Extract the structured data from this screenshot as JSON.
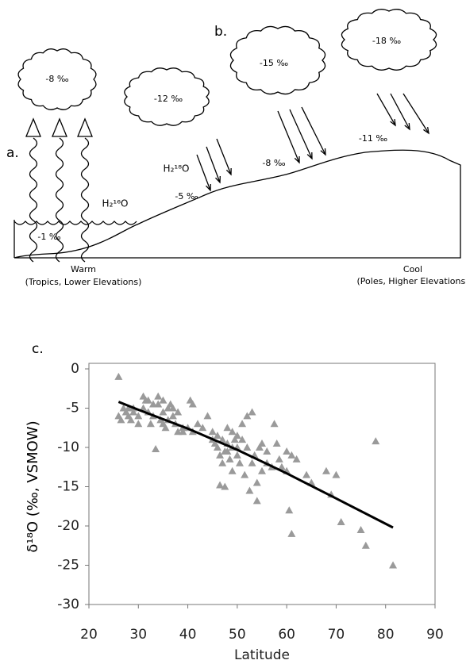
{
  "diagram": {
    "panel_a": "a.",
    "panel_b": "b.",
    "clouds": [
      "-8 ‰",
      "-12 ‰",
      "-15 ‰",
      "-18 ‰"
    ],
    "surface": [
      "-1 ‰",
      "-5 ‰",
      "-8 ‰",
      "-11 ‰"
    ],
    "h2_16o": "H₂¹⁶O",
    "h2_18o": "H₂¹⁸O",
    "warm": "Warm",
    "warm_note": "(Tropics, Lower Elevations)",
    "cool": "Cool",
    "cool_note": "(Poles, Higher Elevations)"
  },
  "chart_data": {
    "type": "scatter",
    "panel": "c.",
    "xlabel": "Latitude",
    "ylabel": "δ¹⁸O (‰, VSMOW)",
    "xlim": [
      20,
      90
    ],
    "xticks": [
      20,
      30,
      40,
      50,
      60,
      70,
      80,
      90
    ],
    "ylim": [
      -30,
      0
    ],
    "yticks": [
      0,
      -5,
      -10,
      -15,
      -20,
      -25,
      -30
    ],
    "series": [
      {
        "type": "scatter",
        "color": "#9a9a9a",
        "marker": "triangle",
        "x": [
          26,
          26,
          26.5,
          27,
          27.5,
          28,
          28,
          28.5,
          29,
          29,
          30,
          30,
          31,
          31,
          31.5,
          32,
          32,
          32.5,
          33,
          33,
          33.5,
          34,
          34,
          34.5,
          35,
          35,
          35,
          35.5,
          36,
          36,
          36.5,
          37,
          37,
          37.5,
          38,
          38,
          39,
          39,
          40,
          40.5,
          41,
          41,
          42,
          43,
          44,
          45,
          45,
          45.5,
          46,
          46,
          46.5,
          46.5,
          47,
          47,
          47.5,
          47.5,
          48,
          48,
          48,
          48.5,
          49,
          49,
          49,
          49.5,
          50,
          50,
          50,
          50.5,
          51,
          51,
          51.5,
          52,
          52,
          52.5,
          53,
          53,
          53.5,
          54,
          54,
          54.5,
          55,
          55,
          56,
          56,
          57,
          57.5,
          58,
          58.5,
          59,
          60,
          60,
          60.5,
          61,
          61,
          62,
          64,
          65,
          68,
          69,
          70,
          71,
          75,
          76,
          78,
          81.5
        ],
        "values": [
          -1,
          -6,
          -6.5,
          -5,
          -5.5,
          -5,
          -6,
          -6.5,
          -5,
          -5.5,
          -6,
          -7,
          -3.5,
          -5,
          -4,
          -4,
          -5.5,
          -7,
          -4.5,
          -6,
          -10.2,
          -3.5,
          -4.5,
          -6.5,
          -4,
          -5.5,
          -7,
          -7.5,
          -5,
          -6.5,
          -4.5,
          -5,
          -6,
          -7,
          -5.5,
          -8,
          -7.5,
          -8,
          -7.5,
          -4,
          -4.5,
          -8,
          -7,
          -7.5,
          -6,
          -8,
          -9,
          -9.5,
          -8.5,
          -10,
          -11,
          -14.8,
          -9,
          -12,
          -10.5,
          -15,
          -7.5,
          -9.5,
          -10.5,
          -11.5,
          -8,
          -10,
          -13,
          -9,
          -8.5,
          -10,
          -11,
          -12,
          -7,
          -9,
          -13.5,
          -6,
          -10,
          -15.5,
          -5.5,
          -12,
          -11,
          -14.5,
          -16.8,
          -10,
          -9.5,
          -13,
          -10.5,
          -12,
          -12.5,
          -7,
          -9.5,
          -11.5,
          -12.5,
          -10.5,
          -13,
          -18,
          -11,
          -21,
          -11.5,
          -13.5,
          -14.5,
          -13,
          -16,
          -13.5,
          -19.5,
          -20.5,
          -22.5,
          -9.2,
          -25
        ]
      },
      {
        "type": "line",
        "color": "#000000",
        "x": [
          26,
          30,
          40,
          50,
          60,
          70,
          81.5
        ],
        "values": [
          -4.2,
          -5.2,
          -7.6,
          -10.3,
          -13.3,
          -16.5,
          -20.2
        ]
      }
    ]
  }
}
